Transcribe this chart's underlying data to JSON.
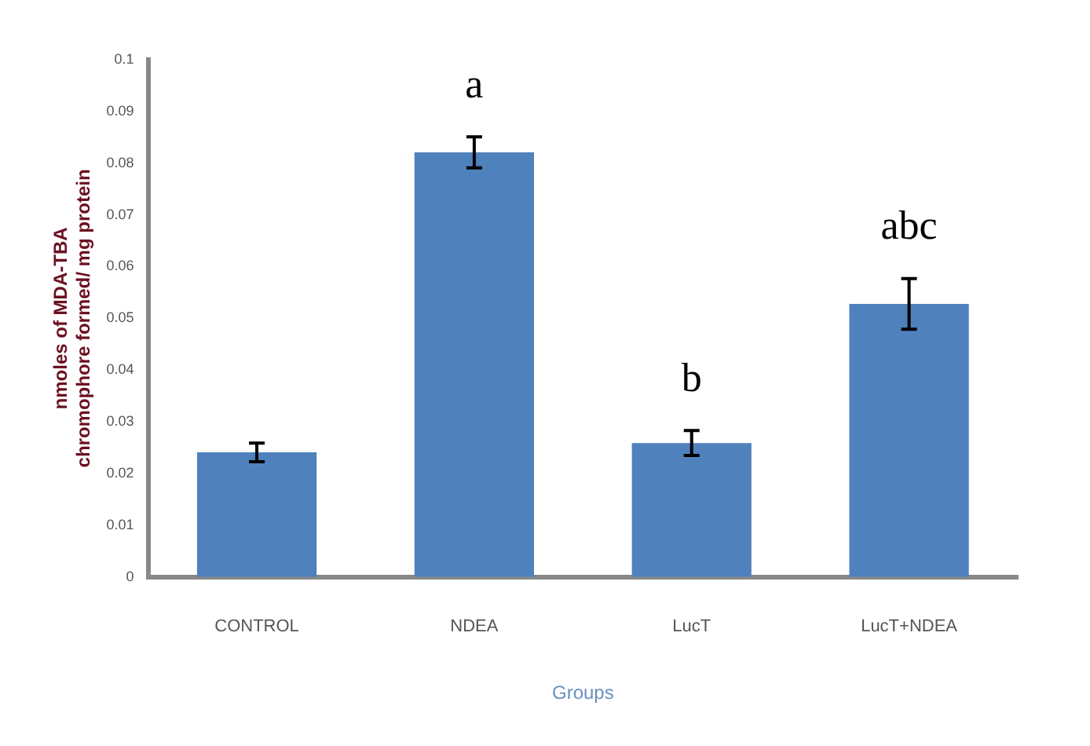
{
  "chart_data": {
    "type": "bar",
    "xlabel": "Groups",
    "ylabel": "nmoles of MDA-TBA chromophore formed/ mg protein",
    "categories": [
      "CONTROL",
      "NDEA",
      "LucT",
      "LucT+NDEA"
    ],
    "values": [
      0.0241,
      0.0821,
      0.0259,
      0.0528
    ],
    "errors": [
      0.0018,
      0.003,
      0.0024,
      0.0049
    ],
    "color": "#4f81bd",
    "ylim": [
      0,
      0.1
    ],
    "yticks": [
      0,
      0.01,
      0.02,
      0.03,
      0.04,
      0.05,
      0.06,
      0.07,
      0.08,
      0.09,
      0.1
    ],
    "grid": false,
    "legend": false,
    "annotations": [
      "a",
      "b",
      "abc"
    ]
  }
}
